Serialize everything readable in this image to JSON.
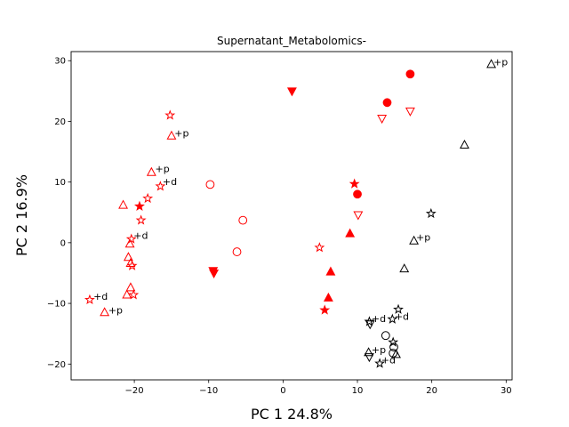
{
  "chart_data": {
    "type": "scatter",
    "title": "Supernatant_Metabolomics-",
    "xlabel": "PC 1 24.8%",
    "ylabel": "PC 2 16.9%",
    "xlim": [
      -28.5,
      30.8
    ],
    "ylim": [
      -22.6,
      31.5
    ],
    "xticks": [
      -20,
      -10,
      0,
      10,
      20,
      30
    ],
    "yticks": [
      -20,
      -10,
      0,
      10,
      20,
      30
    ],
    "xtick_labels": [
      "−20",
      "−10",
      "0",
      "10",
      "20",
      "30"
    ],
    "ytick_labels": [
      "−20",
      "−10",
      "0",
      "10",
      "20",
      "30"
    ],
    "grid": false,
    "colors": {
      "red": "#ff0000",
      "black": "#000000"
    },
    "points": [
      {
        "x": -26.0,
        "y": -9.4,
        "marker": "star",
        "color": "red",
        "filled": false
      },
      {
        "x": -24.0,
        "y": -11.5,
        "marker": "triangle-up",
        "color": "red",
        "filled": false
      },
      {
        "x": -21.5,
        "y": 6.2,
        "marker": "triangle-up",
        "color": "red",
        "filled": false
      },
      {
        "x": -21.0,
        "y": -8.6,
        "marker": "triangle-up",
        "color": "red",
        "filled": false
      },
      {
        "x": -20.8,
        "y": -2.4,
        "marker": "triangle-up",
        "color": "red",
        "filled": false
      },
      {
        "x": -20.6,
        "y": -0.2,
        "marker": "triangle-up",
        "color": "red",
        "filled": false
      },
      {
        "x": -20.4,
        "y": 0.6,
        "marker": "star",
        "color": "red",
        "filled": false
      },
      {
        "x": -20.5,
        "y": -3.4,
        "marker": "triangle-up",
        "color": "red",
        "filled": false
      },
      {
        "x": -20.3,
        "y": -3.8,
        "marker": "star",
        "color": "red",
        "filled": false
      },
      {
        "x": -20.5,
        "y": -7.4,
        "marker": "triangle-up",
        "color": "red",
        "filled": false
      },
      {
        "x": -20.1,
        "y": -8.6,
        "marker": "star",
        "color": "red",
        "filled": false
      },
      {
        "x": -19.1,
        "y": 3.7,
        "marker": "star",
        "color": "red",
        "filled": false
      },
      {
        "x": -19.3,
        "y": 6.0,
        "marker": "star",
        "color": "red",
        "filled": true
      },
      {
        "x": -18.2,
        "y": 7.3,
        "marker": "star",
        "color": "red",
        "filled": false
      },
      {
        "x": -16.5,
        "y": 9.3,
        "marker": "star",
        "color": "red",
        "filled": false
      },
      {
        "x": -17.7,
        "y": 11.6,
        "marker": "triangle-up",
        "color": "red",
        "filled": false
      },
      {
        "x": -15.0,
        "y": 17.6,
        "marker": "triangle-up",
        "color": "red",
        "filled": false
      },
      {
        "x": -15.2,
        "y": 21.0,
        "marker": "star",
        "color": "red",
        "filled": false
      },
      {
        "x": -9.8,
        "y": 9.6,
        "marker": "circle",
        "color": "red",
        "filled": false
      },
      {
        "x": -9.4,
        "y": -4.6,
        "marker": "triangle-down",
        "color": "red",
        "filled": true
      },
      {
        "x": -9.3,
        "y": -5.0,
        "marker": "triangle-down",
        "color": "red",
        "filled": true
      },
      {
        "x": -6.2,
        "y": -1.5,
        "marker": "circle",
        "color": "red",
        "filled": false
      },
      {
        "x": -5.4,
        "y": 3.7,
        "marker": "circle",
        "color": "red",
        "filled": false
      },
      {
        "x": 1.2,
        "y": 25.0,
        "marker": "triangle-down",
        "color": "red",
        "filled": true
      },
      {
        "x": 4.9,
        "y": -0.8,
        "marker": "star",
        "color": "red",
        "filled": false
      },
      {
        "x": 5.6,
        "y": -11.1,
        "marker": "star",
        "color": "red",
        "filled": true
      },
      {
        "x": 6.1,
        "y": -9.1,
        "marker": "triangle-up",
        "color": "red",
        "filled": true
      },
      {
        "x": 6.4,
        "y": -4.8,
        "marker": "triangle-up",
        "color": "red",
        "filled": true
      },
      {
        "x": 9.0,
        "y": 1.5,
        "marker": "triangle-up",
        "color": "red",
        "filled": true
      },
      {
        "x": 9.6,
        "y": 9.7,
        "marker": "star",
        "color": "red",
        "filled": true
      },
      {
        "x": 10.0,
        "y": 8.0,
        "marker": "circle",
        "color": "red",
        "filled": true
      },
      {
        "x": 10.1,
        "y": 4.6,
        "marker": "triangle-down",
        "color": "red",
        "filled": false
      },
      {
        "x": 13.3,
        "y": 20.5,
        "marker": "triangle-down",
        "color": "red",
        "filled": false
      },
      {
        "x": 14.0,
        "y": 23.1,
        "marker": "circle",
        "color": "red",
        "filled": true
      },
      {
        "x": 17.1,
        "y": 27.8,
        "marker": "circle",
        "color": "red",
        "filled": true
      },
      {
        "x": 17.1,
        "y": 21.7,
        "marker": "triangle-down",
        "color": "red",
        "filled": false
      },
      {
        "x": 11.6,
        "y": -13.0,
        "marker": "star",
        "color": "black",
        "filled": false
      },
      {
        "x": 11.7,
        "y": -13.4,
        "marker": "triangle-down",
        "color": "black",
        "filled": false
      },
      {
        "x": 11.5,
        "y": -18.1,
        "marker": "triangle-up",
        "color": "black",
        "filled": false
      },
      {
        "x": 11.6,
        "y": -18.8,
        "marker": "triangle-down",
        "color": "black",
        "filled": false
      },
      {
        "x": 13.0,
        "y": -19.9,
        "marker": "star",
        "color": "black",
        "filled": false
      },
      {
        "x": 13.8,
        "y": -15.3,
        "marker": "circle",
        "color": "black",
        "filled": false
      },
      {
        "x": 14.7,
        "y": -12.6,
        "marker": "star",
        "color": "black",
        "filled": false
      },
      {
        "x": 14.8,
        "y": -16.4,
        "marker": "star",
        "color": "black",
        "filled": false
      },
      {
        "x": 14.9,
        "y": -17.2,
        "marker": "circle",
        "color": "black",
        "filled": false
      },
      {
        "x": 14.8,
        "y": -18.2,
        "marker": "circle",
        "color": "black",
        "filled": false
      },
      {
        "x": 15.2,
        "y": -18.4,
        "marker": "triangle-up",
        "color": "black",
        "filled": false
      },
      {
        "x": 15.5,
        "y": -11.0,
        "marker": "star",
        "color": "black",
        "filled": false
      },
      {
        "x": 16.3,
        "y": -4.3,
        "marker": "triangle-up",
        "color": "black",
        "filled": false
      },
      {
        "x": 17.6,
        "y": 0.3,
        "marker": "triangle-up",
        "color": "black",
        "filled": false
      },
      {
        "x": 19.9,
        "y": 4.8,
        "marker": "star",
        "color": "black",
        "filled": false
      },
      {
        "x": 24.4,
        "y": 16.1,
        "marker": "triangle-up",
        "color": "black",
        "filled": false
      },
      {
        "x": 28.0,
        "y": 29.4,
        "marker": "triangle-up",
        "color": "black",
        "filled": false
      }
    ],
    "annotations": [
      {
        "text": "+d",
        "x": -25.5,
        "y": -8.8
      },
      {
        "text": "+p",
        "x": -23.5,
        "y": -11.1
      },
      {
        "text": "+d",
        "x": -20.1,
        "y": 1.2
      },
      {
        "text": "+p",
        "x": -17.2,
        "y": 12.2
      },
      {
        "text": "+d",
        "x": -16.2,
        "y": 10.1
      },
      {
        "text": "+p",
        "x": -14.6,
        "y": 18.1
      },
      {
        "text": "+d",
        "x": 11.9,
        "y": -12.5
      },
      {
        "text": "+p",
        "x": 11.9,
        "y": -17.6
      },
      {
        "text": "+d",
        "x": 13.2,
        "y": -19.3
      },
      {
        "text": "+d",
        "x": 15.0,
        "y": -12.1
      },
      {
        "text": "+p",
        "x": 17.9,
        "y": 0.9
      },
      {
        "text": "+p",
        "x": 28.3,
        "y": 29.8
      }
    ]
  }
}
